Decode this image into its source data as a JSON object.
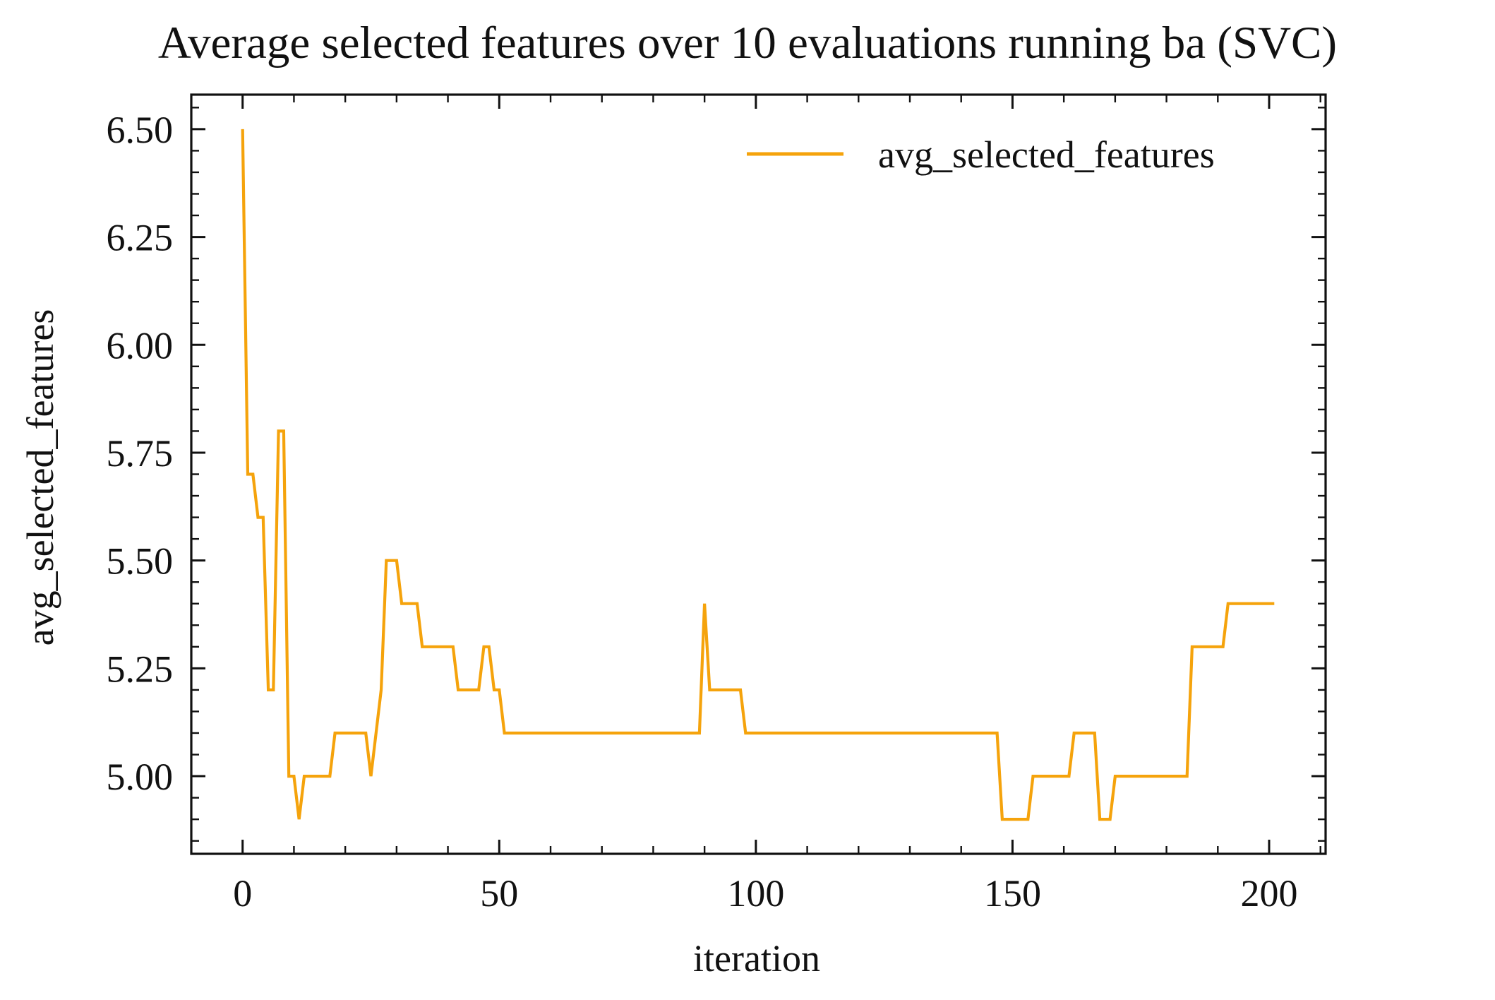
{
  "chart_data": {
    "type": "line",
    "title": "Average selected features over 10 evaluations running ba (SVC)",
    "xlabel": "iteration",
    "ylabel": "avg_selected_features",
    "xlim": [
      -10,
      211
    ],
    "ylim": [
      4.82,
      6.58
    ],
    "xticks": [
      0,
      50,
      100,
      150,
      200
    ],
    "yticks": [
      5.0,
      5.25,
      5.5,
      5.75,
      6.0,
      6.25,
      6.5
    ],
    "xtick_labels": [
      "0",
      "50",
      "100",
      "150",
      "200"
    ],
    "ytick_labels": [
      "5.00",
      "5.25",
      "5.50",
      "5.75",
      "6.00",
      "6.25",
      "6.50"
    ],
    "grid": false,
    "legend_position": "top-right",
    "series": [
      {
        "name": "avg_selected_features",
        "color": "#f5a30c",
        "points": [
          [
            0,
            6.5
          ],
          [
            1,
            5.7
          ],
          [
            2,
            5.7
          ],
          [
            3,
            5.6
          ],
          [
            4,
            5.6
          ],
          [
            5,
            5.2
          ],
          [
            6,
            5.2
          ],
          [
            7,
            5.8
          ],
          [
            8,
            5.8
          ],
          [
            9,
            5.0
          ],
          [
            10,
            5.0
          ],
          [
            11,
            4.9
          ],
          [
            12,
            5.0
          ],
          [
            17,
            5.0
          ],
          [
            18,
            5.1
          ],
          [
            24,
            5.1
          ],
          [
            25,
            5.0
          ],
          [
            27,
            5.2
          ],
          [
            28,
            5.5
          ],
          [
            30,
            5.5
          ],
          [
            31,
            5.4
          ],
          [
            34,
            5.4
          ],
          [
            35,
            5.3
          ],
          [
            41,
            5.3
          ],
          [
            42,
            5.2
          ],
          [
            46,
            5.2
          ],
          [
            47,
            5.3
          ],
          [
            48,
            5.3
          ],
          [
            49,
            5.2
          ],
          [
            50,
            5.2
          ],
          [
            51,
            5.1
          ],
          [
            89,
            5.1
          ],
          [
            90,
            5.4
          ],
          [
            91,
            5.2
          ],
          [
            97,
            5.2
          ],
          [
            98,
            5.1
          ],
          [
            147,
            5.1
          ],
          [
            148,
            4.9
          ],
          [
            153,
            4.9
          ],
          [
            154,
            5.0
          ],
          [
            161,
            5.0
          ],
          [
            162,
            5.1
          ],
          [
            166,
            5.1
          ],
          [
            167,
            4.9
          ],
          [
            169,
            4.9
          ],
          [
            170,
            5.0
          ],
          [
            184,
            5.0
          ],
          [
            185,
            5.3
          ],
          [
            191,
            5.3
          ],
          [
            192,
            5.4
          ],
          [
            201,
            5.4
          ]
        ]
      }
    ]
  }
}
